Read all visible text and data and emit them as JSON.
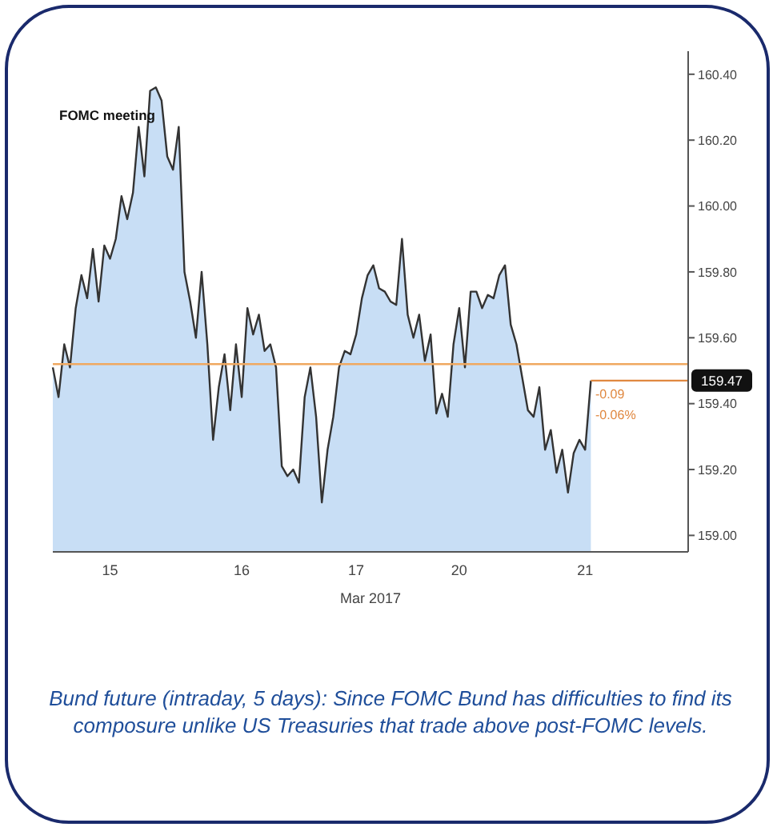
{
  "chart_data": {
    "type": "area",
    "xlabel": "Mar 2017",
    "categories": [
      null,
      null,
      null,
      null,
      null,
      null,
      null,
      null,
      null,
      null,
      "15",
      null,
      null,
      null,
      null,
      null,
      null,
      null,
      null,
      null,
      null,
      null,
      null,
      null,
      null,
      null,
      null,
      null,
      null,
      null,
      null,
      null,
      null,
      "16",
      null,
      null,
      null,
      null,
      null,
      null,
      null,
      null,
      null,
      null,
      null,
      null,
      null,
      null,
      null,
      null,
      null,
      null,
      null,
      "17",
      null,
      null,
      null,
      null,
      null,
      null,
      null,
      null,
      null,
      null,
      null,
      null,
      null,
      null,
      null,
      null,
      null,
      "20",
      null,
      null,
      null,
      null,
      null,
      null,
      null,
      null,
      null,
      null,
      null,
      null,
      null,
      null,
      null,
      null,
      null,
      null,
      null,
      null,
      null,
      "21",
      null,
      null,
      null,
      null,
      null,
      null,
      null,
      null,
      null,
      null,
      null,
      null,
      null,
      null,
      null,
      null,
      null,
      null
    ],
    "series": [
      {
        "color": "#333333",
        "values": [
          159.51,
          159.42,
          159.58,
          159.51,
          159.69,
          159.79,
          159.72,
          159.87,
          159.71,
          159.88,
          159.84,
          159.9,
          160.03,
          159.96,
          160.04,
          160.24,
          160.09,
          160.35,
          160.36,
          160.32,
          160.15,
          160.11,
          160.24,
          159.8,
          159.71,
          159.6,
          159.8,
          159.58,
          159.29,
          159.45,
          159.55,
          159.38,
          159.58,
          159.42,
          159.69,
          159.61,
          159.67,
          159.56,
          159.58,
          159.51,
          159.21,
          159.18,
          159.2,
          159.16,
          159.42,
          159.51,
          159.36,
          159.1,
          159.26,
          159.36,
          159.51,
          159.56,
          159.55,
          159.61,
          159.72,
          159.79,
          159.82,
          159.75,
          159.74,
          159.71,
          159.7,
          159.9,
          159.67,
          159.6,
          159.67,
          159.53,
          159.61,
          159.37,
          159.43,
          159.36,
          159.58,
          159.69,
          159.51,
          159.74,
          159.74,
          159.69,
          159.73,
          159.72,
          159.79,
          159.82,
          159.64,
          159.58,
          159.48,
          159.38,
          159.36,
          159.45,
          159.26,
          159.32,
          159.19,
          159.26,
          159.13,
          159.25,
          159.29,
          159.26,
          159.47,
          null,
          null,
          null,
          null,
          null,
          null,
          null,
          null,
          null,
          null,
          null,
          null,
          null,
          null,
          null,
          null,
          null
        ]
      }
    ],
    "ylim": [
      158.95,
      160.47
    ],
    "yticks": [
      {
        "value": 159.0,
        "label": "159.00"
      },
      {
        "value": 159.2,
        "label": "159.20"
      },
      {
        "value": 159.4,
        "label": "159.40"
      },
      {
        "value": 159.6,
        "label": "159.60"
      },
      {
        "value": 159.8,
        "label": "159.80"
      },
      {
        "value": 160.0,
        "label": "160.00"
      },
      {
        "value": 160.2,
        "label": "160.20"
      },
      {
        "value": 160.4,
        "label": "160.40"
      }
    ],
    "ref_lines": [
      {
        "axis": "y",
        "value": 159.52,
        "color": "#f0a860",
        "line_style": "solid"
      },
      {
        "axis": "y",
        "value": 159.47,
        "label": "159.47",
        "color": "#e08840",
        "line_style": "solid"
      }
    ],
    "annotations": [
      "FOMC meeting",
      "-0.09",
      "-0.06%",
      "Bund future (intraday, 5 days): Since FOMC Bund has difficulties to find its composure unlike US Treasuries that trade above post-FOMC levels."
    ]
  }
}
